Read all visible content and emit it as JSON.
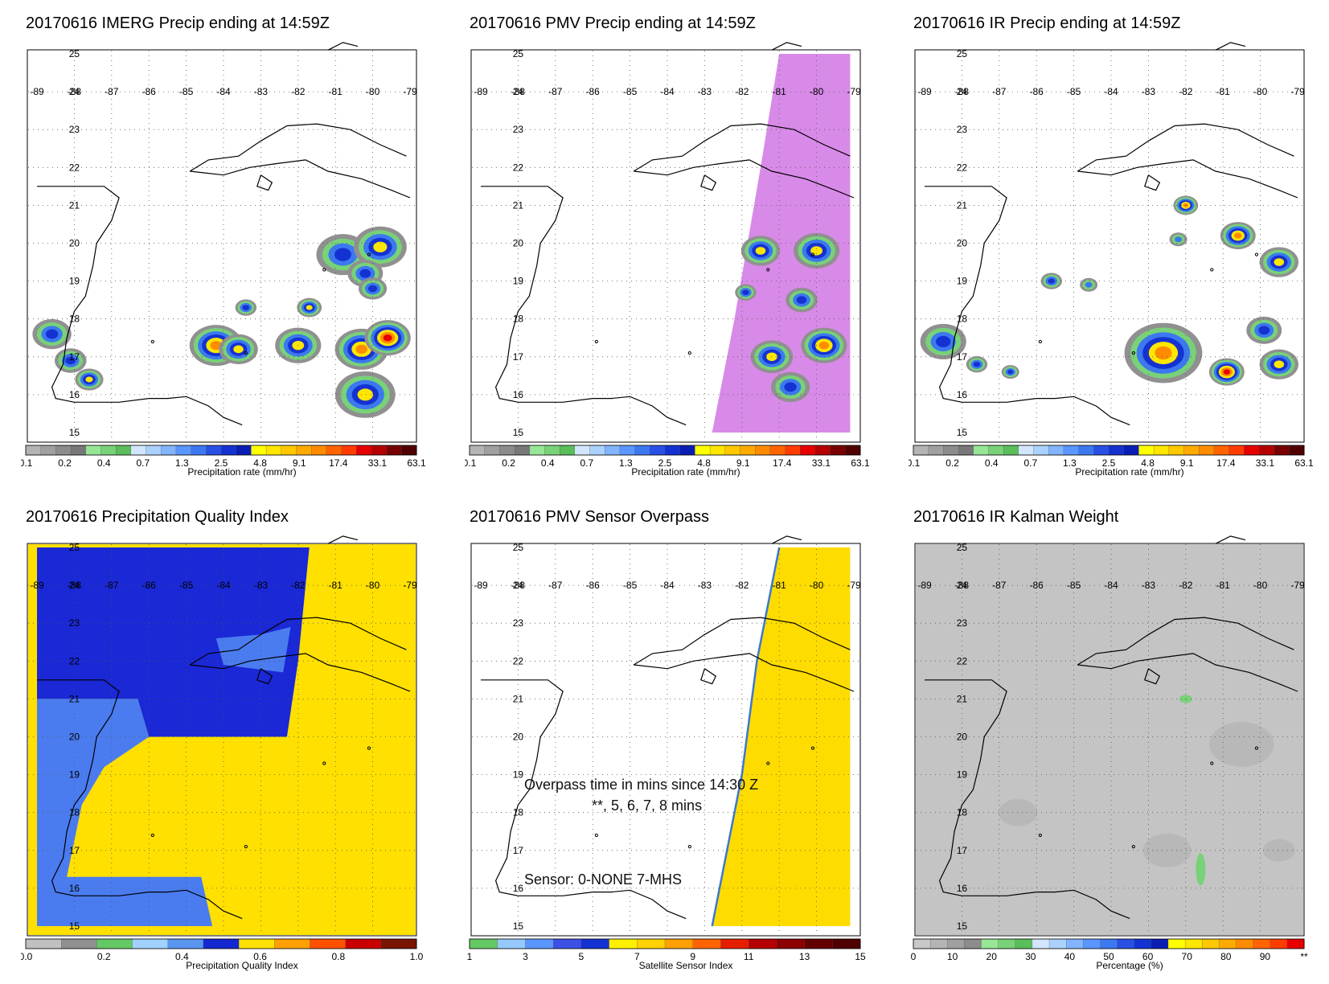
{
  "panels": [
    {
      "id": "imerg",
      "title": "20170616 IMERG Precip ending at 14:59Z",
      "colorbar_label": "Precipitation rate (mm/hr)",
      "colorbar_ticks": [
        "0.1",
        "0.2",
        "0.4",
        "0.7",
        "1.3",
        "2.5",
        "4.8",
        "9.1",
        "17.4",
        "33.1",
        "63.1"
      ],
      "lon_labels": [
        "-89",
        "-88",
        "-87",
        "-86",
        "-85",
        "-84",
        "-83",
        "-82",
        "-81",
        "-80",
        "-79"
      ],
      "lat_labels": [
        "25",
        "24",
        "23",
        "22",
        "21",
        "20",
        "19",
        "18",
        "17",
        "16",
        "15"
      ]
    },
    {
      "id": "pmv",
      "title": "20170616 PMV Precip ending at 14:59Z",
      "colorbar_label": "Precipitation rate (mm/hr)",
      "colorbar_ticks": [
        "0.1",
        "0.2",
        "0.4",
        "0.7",
        "1.3",
        "2.5",
        "4.8",
        "9.1",
        "17.4",
        "33.1",
        "63.1"
      ],
      "lon_labels": [
        "-89",
        "-88",
        "-87",
        "-86",
        "-85",
        "-84",
        "-83",
        "-82",
        "-81",
        "-80",
        "-79"
      ],
      "lat_labels": [
        "25",
        "24",
        "23",
        "22",
        "21",
        "20",
        "19",
        "18",
        "17",
        "16",
        "15"
      ]
    },
    {
      "id": "ir",
      "title": "20170616 IR Precip ending at 14:59Z",
      "colorbar_label": "Precipitation rate (mm/hr)",
      "colorbar_ticks": [
        "0.1",
        "0.2",
        "0.4",
        "0.7",
        "1.3",
        "2.5",
        "4.8",
        "9.1",
        "17.4",
        "33.1",
        "63.1"
      ],
      "lon_labels": [
        "-89",
        "-88",
        "-87",
        "-86",
        "-85",
        "-84",
        "-83",
        "-82",
        "-81",
        "-80",
        "-79"
      ],
      "lat_labels": [
        "25",
        "24",
        "23",
        "22",
        "21",
        "20",
        "19",
        "18",
        "17",
        "16",
        "15"
      ]
    },
    {
      "id": "pqi",
      "title": "20170616 Precipitation Quality Index",
      "colorbar_label": "Precipitation Quality Index",
      "colorbar_ticks": [
        "0.0",
        "0.2",
        "0.4",
        "0.6",
        "0.8",
        "1.0"
      ],
      "lon_labels": [
        "-89",
        "-88",
        "-87",
        "-86",
        "-85",
        "-84",
        "-83",
        "-82",
        "-81",
        "-80",
        "-79"
      ],
      "lat_labels": [
        "25",
        "24",
        "23",
        "22",
        "21",
        "20",
        "19",
        "18",
        "17",
        "16",
        "15"
      ]
    },
    {
      "id": "overpass",
      "title": "20170616 PMV Sensor Overpass",
      "colorbar_label": "Satellite Sensor Index",
      "colorbar_ticks": [
        "1",
        "3",
        "5",
        "7",
        "9",
        "11",
        "13",
        "15"
      ],
      "lon_labels": [
        "-89",
        "-88",
        "-87",
        "-86",
        "-85",
        "-84",
        "-83",
        "-82",
        "-81",
        "-80",
        "-79"
      ],
      "lat_labels": [
        "25",
        "24",
        "23",
        "22",
        "21",
        "20",
        "19",
        "18",
        "17",
        "16",
        "15"
      ],
      "overlay_line1": "Overpass time in mins since 14:30 Z",
      "overlay_line2": "**, 5, 6, 7, 8 mins",
      "overlay_sensor": "Sensor:   0-NONE  7-MHS"
    },
    {
      "id": "kalman",
      "title": "20170616 IR Kalman Weight",
      "colorbar_label": "Percentage (%)",
      "colorbar_ticks": [
        "0",
        "10",
        "20",
        "30",
        "40",
        "50",
        "60",
        "70",
        "80",
        "90",
        "**"
      ],
      "lon_labels": [
        "-89",
        "-88",
        "-87",
        "-86",
        "-85",
        "-84",
        "-83",
        "-82",
        "-81",
        "-80",
        "-79"
      ],
      "lat_labels": [
        "25",
        "24",
        "23",
        "22",
        "21",
        "20",
        "19",
        "18",
        "17",
        "16",
        "15"
      ]
    }
  ],
  "colors": {
    "precip_scale": [
      "#b4b4b4",
      "#a0a0a0",
      "#8c8c8c",
      "#787878",
      "#96e696",
      "#78d278",
      "#5abe5a",
      "#d2e6ff",
      "#aad2ff",
      "#82b4ff",
      "#5a96ff",
      "#3c78f0",
      "#2850e6",
      "#1432d2",
      "#0a1eb4",
      "#ffff00",
      "#ffe600",
      "#ffc800",
      "#ffaa00",
      "#ff8c00",
      "#ff6400",
      "#ff3c00",
      "#e60000",
      "#b40000",
      "#780000",
      "#500000"
    ],
    "pqi_scale": [
      "#c0c0c0",
      "#909090",
      "#64c864",
      "#a0d2ff",
      "#5a96f0",
      "#1428d2",
      "#ffe000",
      "#ffa000",
      "#ff5000",
      "#c80000",
      "#781400"
    ],
    "sensor_scale": [
      "#64c864",
      "#96c8ff",
      "#5a96ff",
      "#3c50e6",
      "#1432d2",
      "#fff000",
      "#ffd200",
      "#ffa000",
      "#ff6400",
      "#e61e00",
      "#b40000",
      "#8c0000",
      "#640000",
      "#500000"
    ],
    "kalman_scale": [
      "#c8c8c8",
      "#b4b4b4",
      "#a0a0a0",
      "#8c8c8c",
      "#96e696",
      "#78d278",
      "#5abe5a",
      "#d2e6ff",
      "#aad2ff",
      "#82b4ff",
      "#5a96ff",
      "#3c78f0",
      "#2850e6",
      "#1432d2",
      "#0a1eb4",
      "#ffff00",
      "#ffe600",
      "#ffc800",
      "#ffaa00",
      "#ff8c00",
      "#ff6400",
      "#ff3c00",
      "#e60000"
    ],
    "pmv_swath": "#d88ae8",
    "pqi_blue": "#1a28d6",
    "pqi_light": "#4a7cf0",
    "pqi_yellow": "#ffe000",
    "sensor_yellow": "#ffdc00",
    "kalman_gray": "#c4c4c4"
  }
}
